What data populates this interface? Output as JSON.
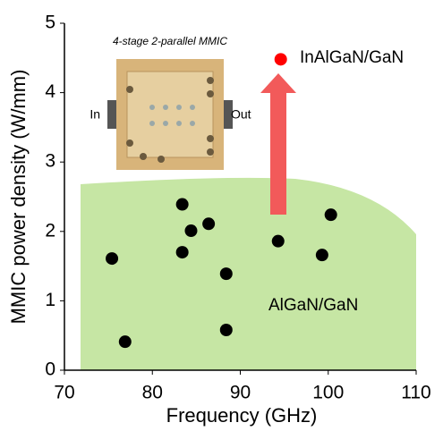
{
  "chart_data": {
    "type": "scatter",
    "inset_title": "4-stage 2-parallel MMIC",
    "inset_in": "In",
    "inset_out": "Out",
    "x_label": "Frequency (GHz)",
    "y_label": "MMIC power density (W/mm)",
    "xlim": [
      70,
      110
    ],
    "xticks": [
      70,
      80,
      90,
      100,
      110
    ],
    "ylim": [
      0,
      5
    ],
    "yticks": [
      0,
      1,
      2,
      3,
      4,
      5
    ],
    "series": [
      {
        "name": "AlGaN/GaN",
        "color": "#000000",
        "x": [
          75.4,
          76.9,
          83.4,
          84.4,
          83.4,
          86.4,
          88.4,
          88.4,
          94.3,
          100.3,
          99.3
        ],
        "values": [
          1.61,
          0.41,
          2.39,
          2.01,
          1.7,
          2.11,
          1.39,
          0.58,
          1.86,
          2.24,
          1.66
        ]
      },
      {
        "name": "InAlGaN/GaN",
        "color": "#ff0000",
        "x": [
          94.6
        ],
        "values": [
          4.48
        ]
      }
    ]
  }
}
